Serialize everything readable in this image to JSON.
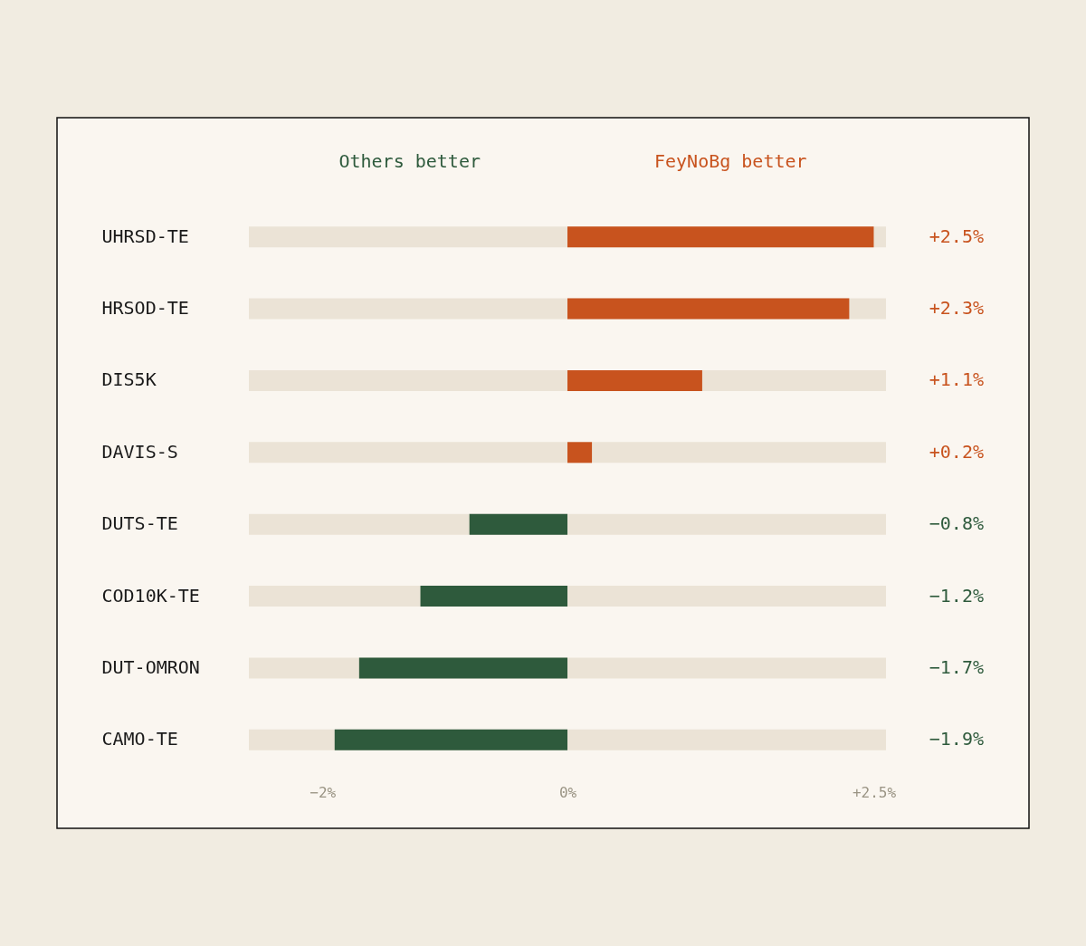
{
  "chart_data": {
    "type": "bar",
    "orientation": "horizontal",
    "categories": [
      "UHRSD-TE",
      "HRSOD-TE",
      "DIS5K",
      "DAVIS-S",
      "DUTS-TE",
      "COD10K-TE",
      "DUT-OMRON",
      "CAMO-TE"
    ],
    "values": [
      2.5,
      2.3,
      1.1,
      0.2,
      -0.8,
      -1.2,
      -1.7,
      -1.9
    ],
    "colors": [
      "#c8531e",
      "#c8531e",
      "#c8531e",
      "#c8531e",
      "#2e5a3c",
      "#2e5a3c",
      "#2e5a3c",
      "#2e5a3c"
    ],
    "value_labels": [
      "+2.5%",
      "+2.3%",
      "+1.1%",
      "+0.2%",
      "−0.8%",
      "−1.2%",
      "−1.7%",
      "−1.9%"
    ],
    "annotations": [
      "Others better",
      "FeyNoBg better"
    ],
    "xlim": [
      -2.6,
      2.6
    ],
    "xticks": [
      {
        "value": -2,
        "label": "−2%"
      },
      {
        "value": 0,
        "label": "0%"
      },
      {
        "value": 2.5,
        "label": "+2.5%"
      }
    ],
    "grid": false,
    "legend": false
  }
}
